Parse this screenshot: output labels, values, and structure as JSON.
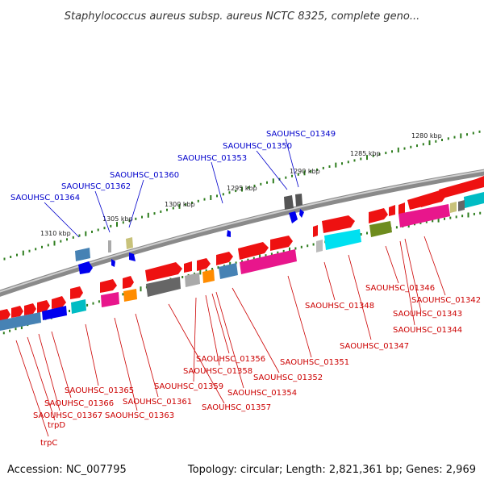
{
  "title": "Staphylococcus aureus subsp. aureus NCTC 8325, complete geno...",
  "footer": {
    "accession": "Accession: NC_007795",
    "summary": "Topology: circular; Length: 2,821,361 bp; Genes: 2,969"
  },
  "colors": {
    "backbone": "#8a8a8a",
    "label_blue": "#0000cc",
    "label_red": "#cc0000",
    "tick": "#2e7d1e"
  },
  "scale_labels": [
    "1280 kbp",
    "1285 kbp",
    "1290 kbp",
    "1295 kbp",
    "1300 kbp",
    "1305 kbp",
    "1310 kbp"
  ],
  "labels_top": [
    "SAOUHSC_01349",
    "SAOUHSC_01350",
    "SAOUHSC_01353",
    "SAOUHSC_01360",
    "SAOUHSC_01362",
    "SAOUHSC_01364"
  ],
  "labels_bottom": [
    "SAOUHSC_01346",
    "SAOUHSC_01342",
    "SAOUHSC_01343",
    "SAOUHSC_01344",
    "SAOUHSC_01348",
    "SAOUHSC_01347",
    "SAOUHSC_01351",
    "SAOUHSC_01356",
    "SAOUHSC_01358",
    "SAOUHSC_01352",
    "SAOUHSC_01359",
    "SAOUHSC_01354",
    "SAOUHSC_01357",
    "SAOUHSC_01365",
    "SAOUHSC_01361",
    "SAOUHSC_01366",
    "SAOUHSC_01363",
    "SAOUHSC_01367",
    "trpD",
    "trpC"
  ]
}
